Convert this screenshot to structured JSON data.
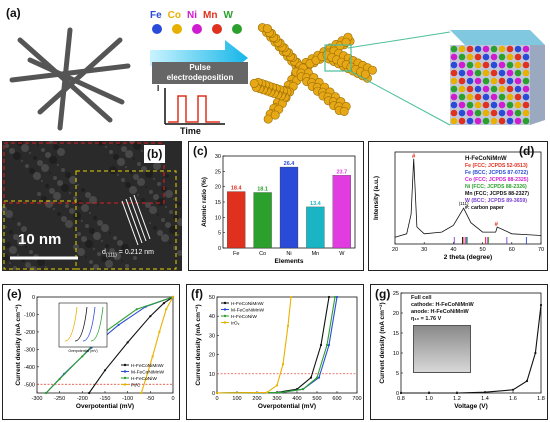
{
  "panel_a": {
    "label": "(a)",
    "elements": [
      "Fe",
      "Co",
      "Ni",
      "Mn",
      "W"
    ],
    "element_colors": [
      "#2a4bd7",
      "#e8b000",
      "#d01cd0",
      "#e0301e",
      "#2ca02c"
    ],
    "pulse_label_line1": "Pulse",
    "pulse_label_line2": "electrodeposition",
    "y_axis": "I",
    "x_axis": "Time"
  },
  "panel_b": {
    "label": "(b)",
    "scale": "10 nm",
    "d_label": "d",
    "d_sub": "(111)",
    "d_value": "= 0.212 nm"
  },
  "panel_c": {
    "label": "(c)",
    "ylabel": "Atomic ratio (%)",
    "xlabel": "Elements",
    "yticks": [
      "0",
      "5",
      "10",
      "15",
      "20",
      "25",
      "30"
    ]
  },
  "panel_d": {
    "label": "(d)",
    "ylabel": "Intensity (a.u.)",
    "xlabel": "2 theta (degree)",
    "xticks": [
      "20",
      "30",
      "40",
      "50",
      "60",
      "70"
    ],
    "peak_mark": "#",
    "peak_label": "(111)",
    "legend": [
      {
        "text": "H-FeCoNiMnW",
        "color": "#111111"
      },
      {
        "text": "Fe (FCC; JCPDS 52-0513)",
        "color": "#e0301e"
      },
      {
        "text": "Fe (BCC; JCPDS 87-0722)",
        "color": "#2a4bd7"
      },
      {
        "text": "Co (FCC; JCPDS 88-2325)",
        "color": "#d01cd0"
      },
      {
        "text": "Ni (FCC; JCPDS 88-2326)",
        "color": "#2ca02c"
      },
      {
        "text": "Mn (FCC; JCPDS 88-2327)",
        "color": "#111111"
      },
      {
        "text": "W (BCC; JCPDS 89-3659)",
        "color": "#7a3fd0"
      },
      {
        "text": "#: carbon paper",
        "color": "#111111"
      }
    ]
  },
  "panel_e": {
    "label": "(e)",
    "ylabel": "Current density (mA cm⁻²)",
    "xlabel": "Overpotential (mV)",
    "xticks": [
      "-300",
      "-250",
      "-200",
      "-150",
      "-100",
      "-50",
      "0"
    ],
    "yticks": [
      "0",
      "-100",
      "-200",
      "-300",
      "-400",
      "-500"
    ],
    "legend": [
      "H-FeCoNiMnW",
      "M-FeCoNiMnW",
      "H-FeCoNiW",
      "Pt/C"
    ],
    "inset_xlabel": "Overpotential (mV)",
    "inset_ylabel": "Current density (mA cm⁻²)"
  },
  "panel_f": {
    "label": "(f)",
    "ylabel": "Current density (mA cm⁻²)",
    "xlabel": "Overpotential (mV)",
    "xticks": [
      "0",
      "100",
      "200",
      "300",
      "400",
      "500",
      "600",
      "700"
    ],
    "yticks": [
      "0",
      "10",
      "20",
      "30",
      "40",
      "50"
    ],
    "legend": [
      "H-FeCoNiMnW",
      "M-FeCoNiMnW",
      "H-FeCoNiW",
      "IrO₂"
    ]
  },
  "panel_g": {
    "label": "(g)",
    "ylabel": "Current density (mA cm⁻²)",
    "xlabel": "Voltage (V)",
    "xticks": [
      "0.8",
      "1.0",
      "1.2",
      "1.4",
      "1.6",
      "1.8"
    ],
    "yticks": [
      "0",
      "5",
      "10",
      "15",
      "20",
      "25"
    ],
    "notes": [
      "Full cell",
      "cathode: H-FeCoNiMnW",
      "anode: H-FeCoNiMnW",
      "η₁₀ = 1.76 V"
    ]
  },
  "chart_data": [
    {
      "type": "bar",
      "title": "",
      "xlabel": "Elements",
      "ylabel": "Atomic ratio (%)",
      "categories": [
        "Fe",
        "Co",
        "Ni",
        "Mn",
        "W"
      ],
      "values": [
        18.4,
        18.1,
        26.4,
        13.4,
        23.7
      ],
      "colors": [
        "#e0301e",
        "#2ca02c",
        "#2a4bd7",
        "#19b5c4",
        "#e03ce0"
      ],
      "ylim": [
        0,
        30
      ]
    },
    {
      "type": "line",
      "xlabel": "2 theta (degree)",
      "ylabel": "Intensity (a.u.)",
      "xlim": [
        20,
        70
      ],
      "x": [
        20,
        24,
        25.5,
        26.4,
        27.5,
        30,
        36,
        40,
        43.5,
        46,
        50,
        54.5,
        55,
        60,
        65,
        70
      ],
      "y": [
        0.08,
        0.12,
        0.35,
        1.0,
        0.2,
        0.12,
        0.14,
        0.22,
        0.42,
        0.25,
        0.14,
        0.14,
        0.2,
        0.12,
        0.11,
        0.1
      ]
    },
    {
      "type": "line",
      "xlabel": "Overpotential (mV)",
      "ylabel": "Current density (mA cm⁻²)",
      "xlim": [
        -300,
        0
      ],
      "ylim": [
        -550,
        0
      ],
      "series": [
        {
          "name": "H-FeCoNiMnW",
          "color": "#111111",
          "x": [
            -185,
            -150,
            -100,
            -50,
            -20,
            0
          ],
          "y": [
            -550,
            -420,
            -260,
            -110,
            -35,
            0
          ]
        },
        {
          "name": "M-FeCoNiMnW",
          "color": "#2a4bd7",
          "x": [
            -280,
            -240,
            -180,
            -120,
            -60,
            0
          ],
          "y": [
            -550,
            -440,
            -290,
            -160,
            -55,
            0
          ]
        },
        {
          "name": "H-FeCoNiW",
          "color": "#2ca02c",
          "x": [
            -280,
            -250,
            -200,
            -150,
            -80,
            0
          ],
          "y": [
            -550,
            -470,
            -340,
            -200,
            -70,
            0
          ]
        },
        {
          "name": "Pt/C",
          "color": "#e8b000",
          "x": [
            -70,
            -60,
            -45,
            -30,
            -15,
            0
          ],
          "y": [
            -550,
            -470,
            -340,
            -200,
            -70,
            0
          ]
        }
      ]
    },
    {
      "type": "line",
      "xlabel": "Overpotential (mV)",
      "ylabel": "Current density (mA cm⁻²)",
      "xlim": [
        0,
        700
      ],
      "ylim": [
        0,
        50
      ],
      "series": [
        {
          "name": "H-FeCoNiMnW",
          "color": "#111111",
          "x": [
            0,
            300,
            400,
            470,
            520,
            560
          ],
          "y": [
            0,
            0.3,
            2,
            8,
            25,
            50
          ]
        },
        {
          "name": "M-FeCoNiMnW",
          "color": "#2a4bd7",
          "x": [
            0,
            320,
            430,
            510,
            560,
            600
          ],
          "y": [
            0,
            0.3,
            2,
            8,
            25,
            50
          ]
        },
        {
          "name": "H-FeCoNiW",
          "color": "#2ca02c",
          "x": [
            0,
            320,
            430,
            500,
            550,
            590
          ],
          "y": [
            0,
            0.3,
            2,
            8,
            25,
            50
          ]
        },
        {
          "name": "IrO₂",
          "color": "#e8b000",
          "x": [
            0,
            250,
            300,
            330,
            355,
            370
          ],
          "y": [
            0,
            0.3,
            4,
            15,
            35,
            50
          ]
        }
      ]
    },
    {
      "type": "line",
      "xlabel": "Voltage (V)",
      "ylabel": "Current density (mA cm⁻²)",
      "xlim": [
        0.8,
        1.8
      ],
      "ylim": [
        0,
        25
      ],
      "series": [
        {
          "name": "",
          "color": "#111111",
          "x": [
            0.8,
            1.0,
            1.2,
            1.4,
            1.6,
            1.7,
            1.76,
            1.8
          ],
          "y": [
            0,
            0,
            0,
            0.2,
            0.8,
            3,
            10,
            22
          ]
        }
      ]
    }
  ]
}
